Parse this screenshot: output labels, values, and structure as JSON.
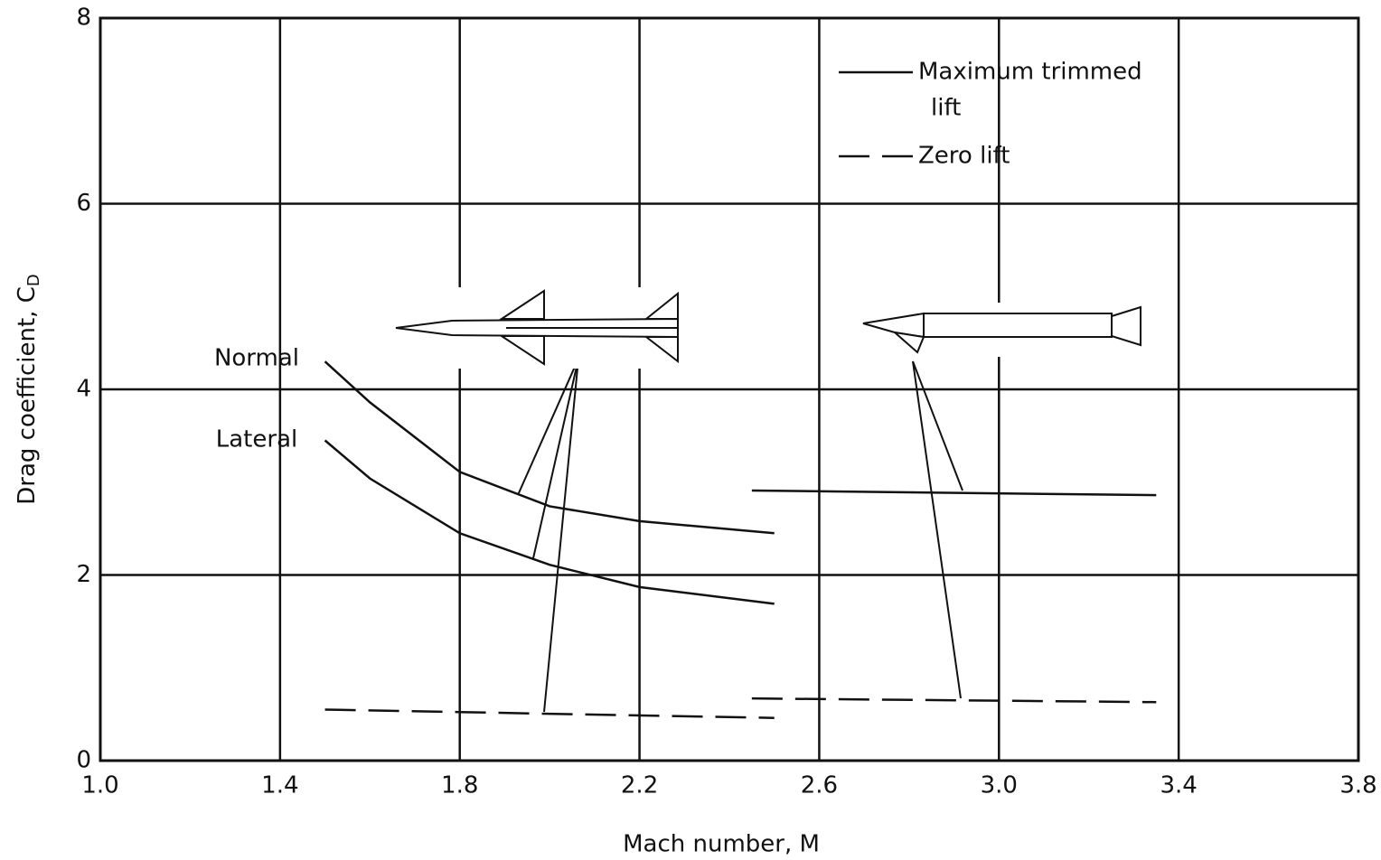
{
  "chart_data": {
    "type": "line",
    "xlabel": "Mach number, M",
    "ylabel": "Drag coefficient, C",
    "ylabel_subscript": "D",
    "xlim": [
      1.0,
      3.8
    ],
    "ylim": [
      0,
      8
    ],
    "xticks": [
      {
        "value": 1.0,
        "label": "1.0"
      },
      1.4,
      1.8,
      2.2,
      2.6,
      {
        "value": 3.0,
        "label": "3.0"
      },
      3.4,
      3.8
    ],
    "yticks": [
      0,
      2,
      4,
      6,
      8
    ],
    "grid": true,
    "legend": [
      {
        "label_lines": [
          "Maximum trimmed",
          "lift"
        ],
        "style": "solid"
      },
      {
        "label_lines": [
          "Zero lift"
        ],
        "style": "dashed"
      }
    ],
    "series": [
      {
        "name": "Normal",
        "style": "solid",
        "color": "#111111",
        "x": [
          1.5,
          1.6,
          1.8,
          2.0,
          2.2,
          2.5
        ],
        "values": [
          4.3,
          3.86,
          3.11,
          2.74,
          2.58,
          2.45
        ]
      },
      {
        "name": "Lateral",
        "style": "solid",
        "color": "#111111",
        "x": [
          1.5,
          1.6,
          1.8,
          2.0,
          2.2,
          2.5
        ],
        "values": [
          3.45,
          3.04,
          2.45,
          2.11,
          1.87,
          1.69
        ]
      },
      {
        "style": "dashed",
        "color": "#111111",
        "x": [
          1.5,
          2.5
        ],
        "values": [
          0.55,
          0.46
        ]
      },
      {
        "style": "solid",
        "color": "#111111",
        "x": [
          2.45,
          3.35
        ],
        "values": [
          2.91,
          2.86
        ]
      },
      {
        "style": "dashed",
        "color": "#111111",
        "x": [
          2.45,
          3.35
        ],
        "values": [
          0.67,
          0.63
        ]
      }
    ]
  }
}
